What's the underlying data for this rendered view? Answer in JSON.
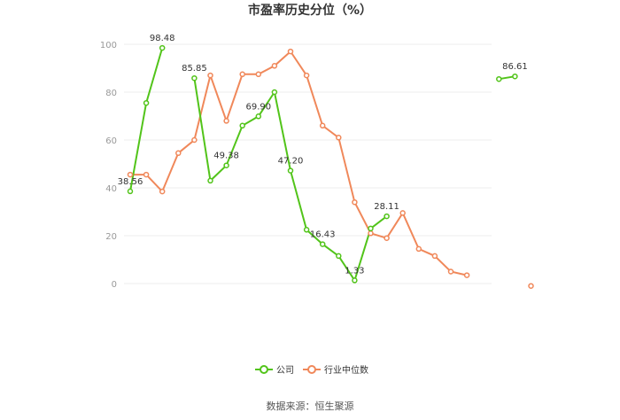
{
  "chart_data": {
    "type": "line",
    "title": "市盈率历史分位（%）",
    "ylim": [
      0,
      100
    ],
    "yticks": [
      "100",
      "80",
      "60",
      "40",
      "20",
      "0"
    ],
    "grid": true,
    "legend_placement": "bottom",
    "series": [
      {
        "name": "公司",
        "color": "#52c41a",
        "values": [
          38.56,
          75.5,
          98.48,
          null,
          85.85,
          43.0,
          49.38,
          66.0,
          69.9,
          80.0,
          47.2,
          22.5,
          16.43,
          11.5,
          1.33,
          23.0,
          28.11,
          null,
          null,
          null,
          null,
          null,
          null,
          85.5,
          86.61,
          null
        ],
        "labels": [
          {
            "index": 0,
            "text": "38.56"
          },
          {
            "index": 2,
            "text": "98.48"
          },
          {
            "index": 4,
            "text": "85.85"
          },
          {
            "index": 6,
            "text": "49.38"
          },
          {
            "index": 8,
            "text": "69.90"
          },
          {
            "index": 10,
            "text": "47.20"
          },
          {
            "index": 12,
            "text": "16.43"
          },
          {
            "index": 14,
            "text": "1.33"
          },
          {
            "index": 16,
            "text": "28.11"
          },
          {
            "index": 24,
            "text": "86.61"
          }
        ]
      },
      {
        "name": "行业中位数",
        "color": "#f0885a",
        "values": [
          45.5,
          45.5,
          38.5,
          54.5,
          60.0,
          87.0,
          68.0,
          87.5,
          87.5,
          91.0,
          97.0,
          87.0,
          66.0,
          61.0,
          34.0,
          21.0,
          19.0,
          29.5,
          14.5,
          11.5,
          5.0,
          3.5,
          null,
          null,
          null,
          -1.0
        ]
      }
    ]
  },
  "source": "数据来源：恒生聚源"
}
